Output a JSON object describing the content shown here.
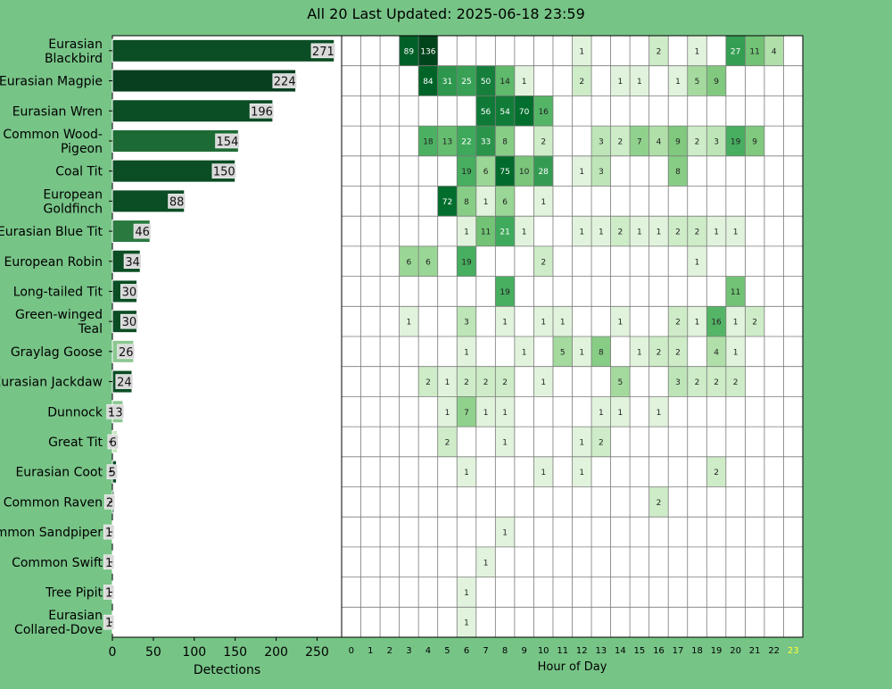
{
  "chart_data": {
    "title": "All 20 Last Updated: 2025-06-18 23:59",
    "species": [
      {
        "name": "Eurasian Blackbird",
        "label": [
          "Eurasian",
          "Blackbird"
        ],
        "total": 271
      },
      {
        "name": "Eurasian Magpie",
        "label": [
          "Eurasian Magpie"
        ],
        "total": 224
      },
      {
        "name": "Eurasian Wren",
        "label": [
          "Eurasian Wren"
        ],
        "total": 196
      },
      {
        "name": "Common Wood-Pigeon",
        "label": [
          "Common Wood-",
          "Pigeon"
        ],
        "total": 154
      },
      {
        "name": "Coal Tit",
        "label": [
          "Coal Tit"
        ],
        "total": 150
      },
      {
        "name": "European Goldfinch",
        "label": [
          "European",
          "Goldfinch"
        ],
        "total": 88
      },
      {
        "name": "Eurasian Blue Tit",
        "label": [
          "Eurasian Blue Tit"
        ],
        "total": 46
      },
      {
        "name": "European Robin",
        "label": [
          "European Robin"
        ],
        "total": 34
      },
      {
        "name": "Long-tailed Tit",
        "label": [
          "Long-tailed Tit"
        ],
        "total": 30
      },
      {
        "name": "Green-winged Teal",
        "label": [
          "Green-winged",
          "Teal"
        ],
        "total": 30
      },
      {
        "name": "Graylag Goose",
        "label": [
          "Graylag Goose"
        ],
        "total": 26
      },
      {
        "name": "Eurasian Jackdaw",
        "label": [
          "Eurasian Jackdaw"
        ],
        "total": 24
      },
      {
        "name": "Dunnock",
        "label": [
          "Dunnock"
        ],
        "total": 13
      },
      {
        "name": "Great Tit",
        "label": [
          "Great Tit"
        ],
        "total": 6
      },
      {
        "name": "Eurasian Coot",
        "label": [
          "Eurasian Coot"
        ],
        "total": 5
      },
      {
        "name": "Common Raven",
        "label": [
          "Common Raven"
        ],
        "total": 2
      },
      {
        "name": "Common Sandpiper",
        "label": [
          "Common Sandpiper"
        ],
        "total": 1
      },
      {
        "name": "Common Swift",
        "label": [
          "Common Swift"
        ],
        "total": 1
      },
      {
        "name": "Tree Pipit",
        "label": [
          "Tree Pipit"
        ],
        "total": 1
      },
      {
        "name": "Eurasian Collared-Dove",
        "label": [
          "Eurasian",
          "Collared-Dove"
        ],
        "total": 1
      }
    ],
    "bar_colors": [
      "#0b4d24",
      "#073f1f",
      "#0b4d24",
      "#1d6b34",
      "#0b4d24",
      "#0b4d24",
      "#2a7a40",
      "#0b4d24",
      "#0b4d24",
      "#0b4d24",
      "#8cc791",
      "#0b4d24",
      "#8cc791",
      "#c7e7c0",
      "#0b4d24",
      "#0b4d24",
      "#0b4d24",
      "#0b4d24",
      "#0b4d24",
      "#0b4d24"
    ],
    "bar_axis": {
      "xlabel": "Detections",
      "ticks": [
        0,
        50,
        100,
        150,
        200,
        250
      ],
      "xlim": [
        0,
        280
      ]
    },
    "heatmap": {
      "xlabel": "Hour of Day",
      "hours": [
        "0",
        "1",
        "2",
        "3",
        "4",
        "5",
        "6",
        "7",
        "8",
        "9",
        "10",
        "11",
        "12",
        "13",
        "14",
        "15",
        "16",
        "17",
        "18",
        "19",
        "20",
        "21",
        "22",
        "23"
      ],
      "current_hour_index": 23,
      "current_hour_color": "#ffff33",
      "cells": [
        [
          [
            3,
            89
          ],
          [
            4,
            136
          ],
          [
            12,
            1
          ],
          [
            16,
            2
          ],
          [
            18,
            1
          ],
          [
            20,
            27
          ],
          [
            21,
            11
          ],
          [
            22,
            4
          ]
        ],
        [
          [
            4,
            84
          ],
          [
            5,
            31
          ],
          [
            6,
            25
          ],
          [
            7,
            50
          ],
          [
            8,
            14
          ],
          [
            9,
            1
          ],
          [
            12,
            2
          ],
          [
            14,
            1
          ],
          [
            15,
            1
          ],
          [
            17,
            1
          ],
          [
            18,
            5
          ],
          [
            19,
            9
          ]
        ],
        [
          [
            7,
            56
          ],
          [
            8,
            54
          ],
          [
            9,
            70
          ],
          [
            10,
            16
          ]
        ],
        [
          [
            4,
            18
          ],
          [
            5,
            13
          ],
          [
            6,
            22
          ],
          [
            7,
            33
          ],
          [
            8,
            8
          ],
          [
            10,
            2
          ],
          [
            13,
            3
          ],
          [
            14,
            2
          ],
          [
            15,
            7
          ],
          [
            16,
            4
          ],
          [
            17,
            9
          ],
          [
            18,
            2
          ],
          [
            19,
            3
          ],
          [
            20,
            19
          ],
          [
            21,
            9
          ]
        ],
        [
          [
            6,
            19
          ],
          [
            7,
            6
          ],
          [
            8,
            75
          ],
          [
            9,
            10
          ],
          [
            10,
            28
          ],
          [
            12,
            1
          ],
          [
            13,
            3
          ],
          [
            17,
            8
          ]
        ],
        [
          [
            5,
            72
          ],
          [
            6,
            8
          ],
          [
            7,
            1
          ],
          [
            8,
            6
          ],
          [
            10,
            1
          ]
        ],
        [
          [
            6,
            1
          ],
          [
            7,
            11
          ],
          [
            8,
            21
          ],
          [
            9,
            1
          ],
          [
            12,
            1
          ],
          [
            13,
            1
          ],
          [
            14,
            2
          ],
          [
            15,
            1
          ],
          [
            16,
            1
          ],
          [
            17,
            2
          ],
          [
            18,
            2
          ],
          [
            19,
            1
          ],
          [
            20,
            1
          ]
        ],
        [
          [
            3,
            6
          ],
          [
            4,
            6
          ],
          [
            6,
            19
          ],
          [
            10,
            2
          ],
          [
            18,
            1
          ]
        ],
        [
          [
            8,
            19
          ],
          [
            20,
            11
          ]
        ],
        [
          [
            3,
            1
          ],
          [
            6,
            3
          ],
          [
            8,
            1
          ],
          [
            10,
            1
          ],
          [
            11,
            1
          ],
          [
            14,
            1
          ],
          [
            17,
            2
          ],
          [
            18,
            1
          ],
          [
            19,
            16
          ],
          [
            20,
            1
          ],
          [
            21,
            2
          ]
        ],
        [
          [
            6,
            1
          ],
          [
            9,
            1
          ],
          [
            11,
            5
          ],
          [
            12,
            1
          ],
          [
            13,
            8
          ],
          [
            15,
            1
          ],
          [
            16,
            2
          ],
          [
            17,
            2
          ],
          [
            19,
            4
          ],
          [
            20,
            1
          ]
        ],
        [
          [
            4,
            2
          ],
          [
            5,
            1
          ],
          [
            6,
            2
          ],
          [
            7,
            2
          ],
          [
            8,
            2
          ],
          [
            10,
            1
          ],
          [
            14,
            5
          ],
          [
            17,
            3
          ],
          [
            18,
            2
          ],
          [
            19,
            2
          ],
          [
            20,
            2
          ]
        ],
        [
          [
            5,
            1
          ],
          [
            6,
            7
          ],
          [
            7,
            1
          ],
          [
            8,
            1
          ],
          [
            13,
            1
          ],
          [
            14,
            1
          ],
          [
            16,
            1
          ]
        ],
        [
          [
            5,
            2
          ],
          [
            8,
            1
          ],
          [
            12,
            1
          ],
          [
            13,
            2
          ]
        ],
        [
          [
            6,
            1
          ],
          [
            10,
            1
          ],
          [
            12,
            1
          ],
          [
            19,
            2
          ]
        ],
        [
          [
            16,
            2
          ]
        ],
        [
          [
            8,
            1
          ]
        ],
        [
          [
            7,
            1
          ]
        ],
        [
          [
            6,
            1
          ]
        ],
        [
          [
            6,
            1
          ]
        ]
      ]
    }
  }
}
